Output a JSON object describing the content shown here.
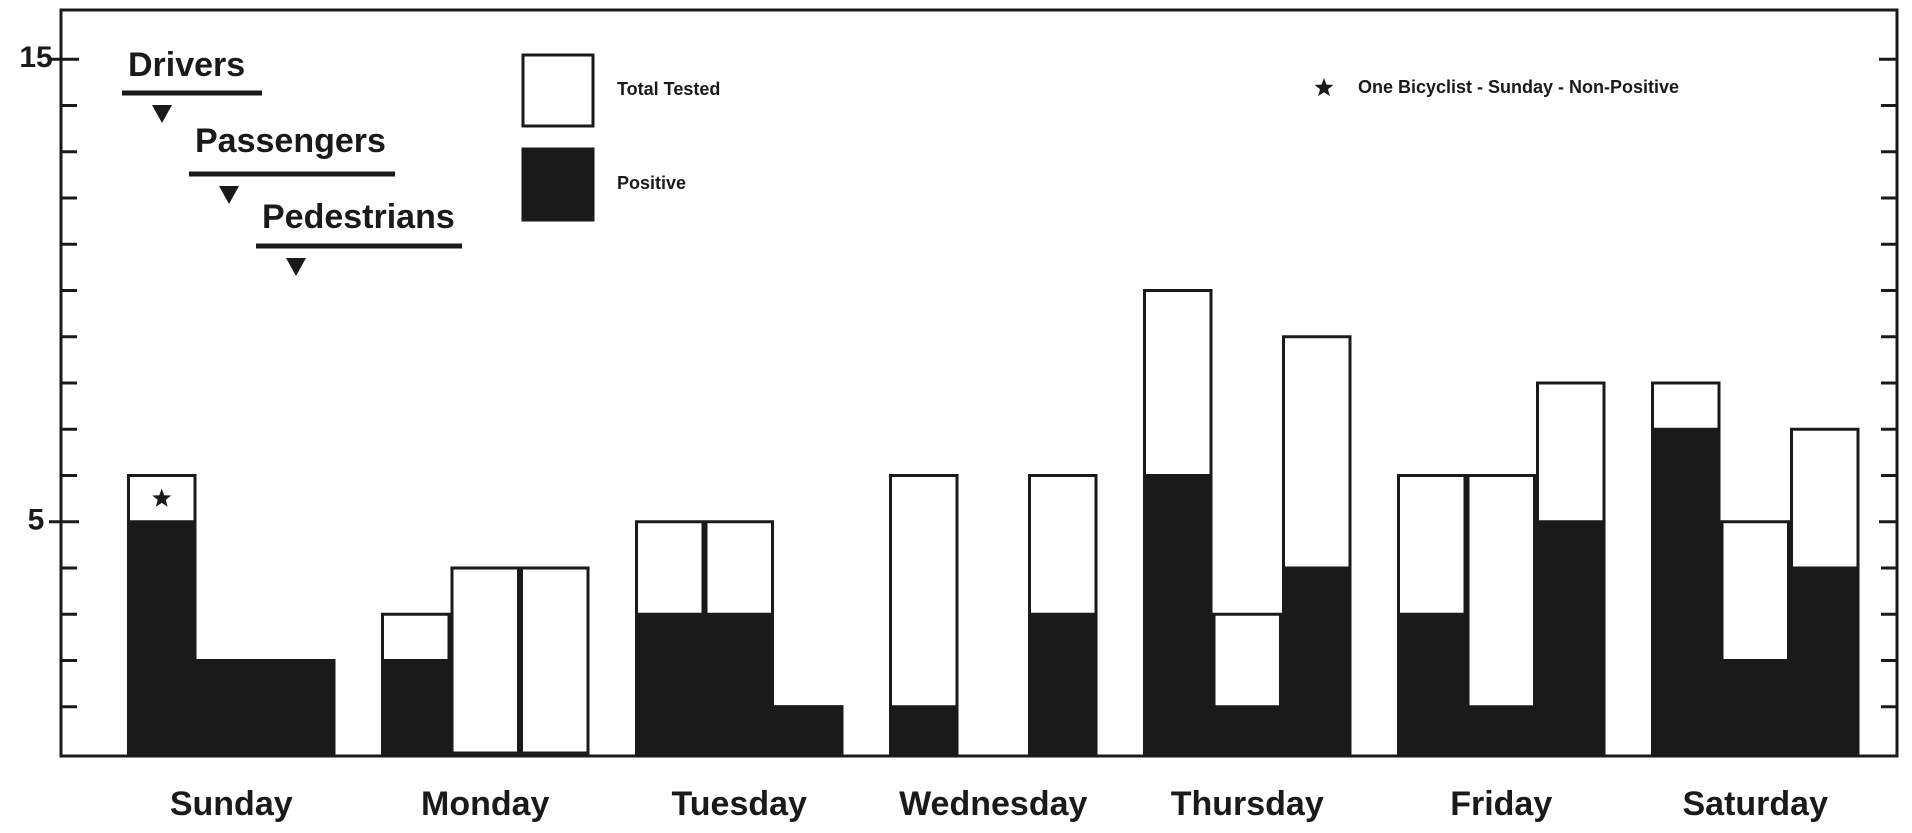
{
  "chart_data": {
    "type": "grouped-overlay-bar",
    "categories": [
      "Sunday",
      "Monday",
      "Tuesday",
      "Wednesday",
      "Thursday",
      "Friday",
      "Saturday"
    ],
    "series": [
      {
        "name": "Drivers",
        "total_tested": [
          6,
          3,
          5,
          6,
          10,
          6,
          8
        ],
        "positive": [
          5,
          2,
          3,
          1,
          6,
          3,
          7
        ]
      },
      {
        "name": "Passengers",
        "total_tested": [
          2,
          4,
          5,
          0,
          3,
          6,
          5
        ],
        "positive": [
          2,
          0,
          3,
          0,
          1,
          1,
          2
        ]
      },
      {
        "name": "Pedestrians",
        "total_tested": [
          2,
          4,
          1,
          6,
          9,
          8,
          7
        ],
        "positive": [
          2,
          0,
          1,
          3,
          4,
          5,
          4
        ]
      }
    ],
    "legend": [
      {
        "label": "Total Tested",
        "color": "#ffffff"
      },
      {
        "label": "Positive",
        "color": "#1a1a1a"
      }
    ],
    "annotation": "One Bicyclist - Sunday - Non-Positive",
    "ylim": [
      0,
      16
    ],
    "yticks": [
      5,
      15
    ],
    "minor_yticks": [
      1,
      2,
      3,
      4,
      6,
      7,
      8,
      9,
      10,
      11,
      12,
      13,
      14
    ]
  }
}
